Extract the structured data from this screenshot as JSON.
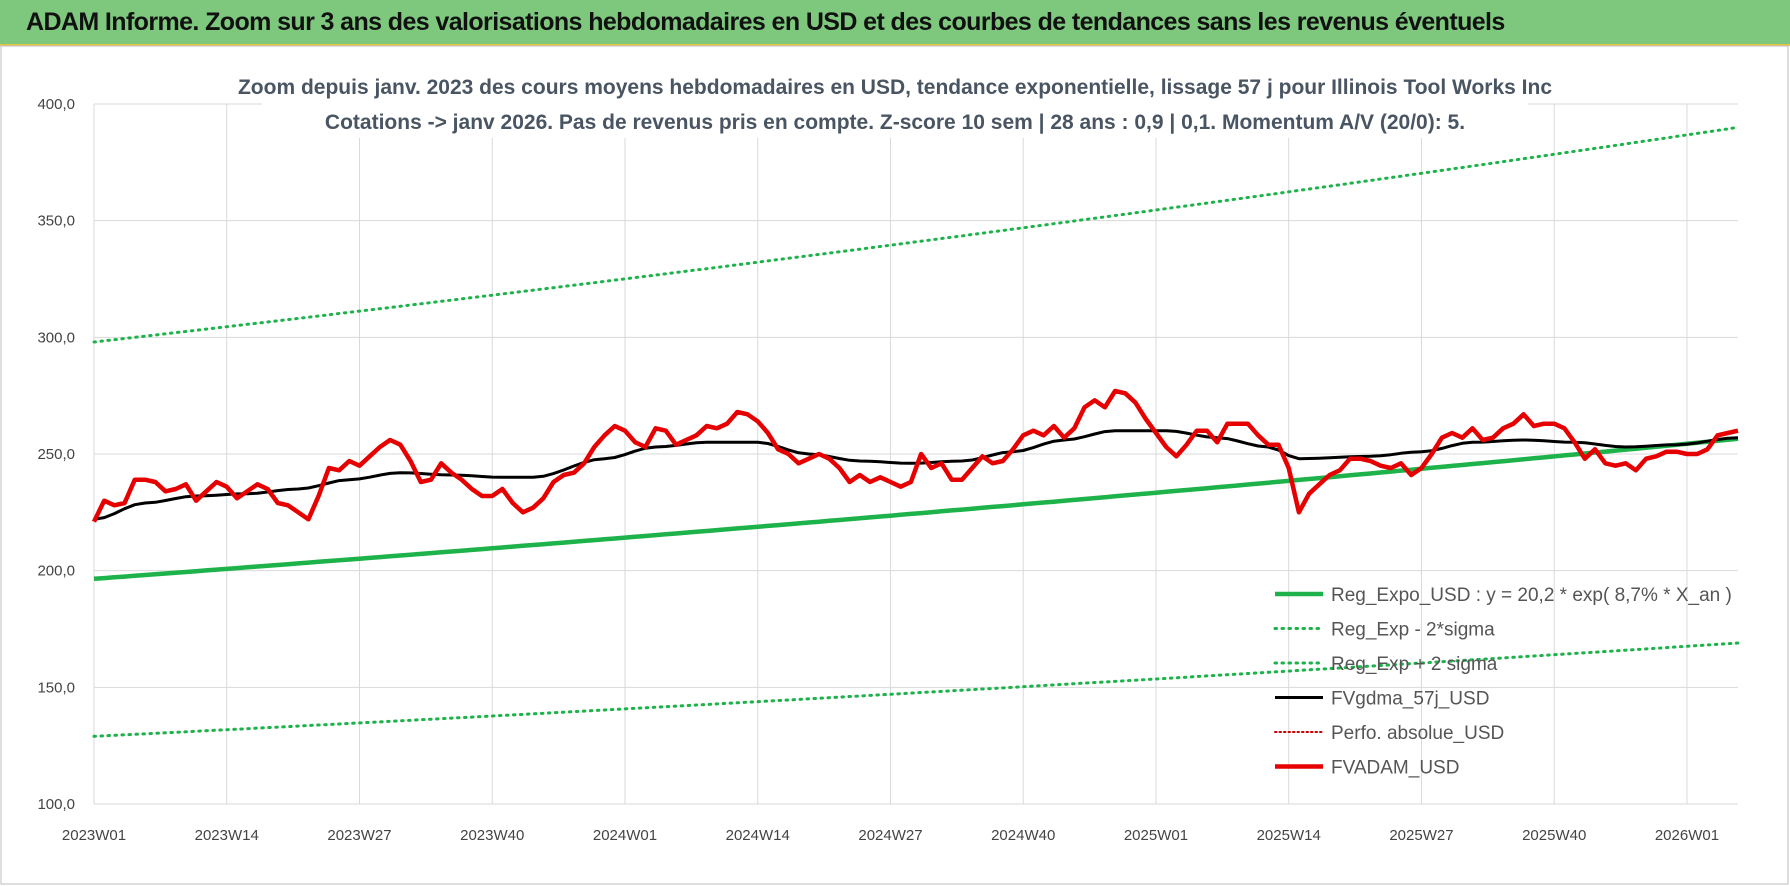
{
  "banner": {
    "title": "ADAM Informe. Zoom sur 3 ans des valorisations hebdomadaires en USD et des courbes de tendances sans les revenus éventuels"
  },
  "chart_data": {
    "type": "line",
    "title": "Zoom depuis janv. 2023 des cours moyens hebdomadaires en USD, tendance exponentielle, lissage 57 j pour Illinois Tool Works Inc",
    "subtitle": "Cotations -> janv 2026. Pas de revenus pris en compte. Z-score 10 sem | 28 ans : 0,9 | 0,1. Momentum A/V (20/0): 5.",
    "xlabel": "",
    "ylabel": "",
    "ylim": [
      100,
      400
    ],
    "y_ticks": [
      "100,0",
      "150,0",
      "200,0",
      "250,0",
      "300,0",
      "350,0",
      "400,0"
    ],
    "x_tick_labels": [
      "2023W01",
      "2023W14",
      "2023W27",
      "2023W40",
      "2024W01",
      "2024W14",
      "2024W27",
      "2024W40",
      "2025W01",
      "2025W14",
      "2025W27",
      "2025W40",
      "2026W01"
    ],
    "x_ticks_index": [
      0,
      13,
      26,
      39,
      52,
      65,
      78,
      91,
      104,
      117,
      130,
      143,
      156
    ],
    "n_weeks": 162,
    "grid": true,
    "legend_position": "bottom-right",
    "series": [
      {
        "name": "Reg_Expo_USD : y = 20,2 * exp( 8,7% *  X_an )",
        "color": "#1db34a",
        "style": "solid-thick",
        "start": 196.5,
        "end": 256.5
      },
      {
        "name": "Reg_Exp - 2*sigma",
        "color": "#1db34a",
        "style": "dotted",
        "start": 129,
        "end": 169
      },
      {
        "name": "Reg_Exp + 2 sigma",
        "color": "#1db34a",
        "style": "dotted",
        "start": 298,
        "end": 390
      },
      {
        "name": "FVgdma_57j_USD",
        "color": "#000000",
        "style": "solid",
        "knots": [
          [
            0,
            222
          ],
          [
            5,
            229
          ],
          [
            10,
            232
          ],
          [
            15,
            233
          ],
          [
            20,
            235
          ],
          [
            25,
            239
          ],
          [
            30,
            242
          ],
          [
            35,
            241
          ],
          [
            40,
            240
          ],
          [
            43,
            240
          ],
          [
            50,
            248
          ],
          [
            55,
            253
          ],
          [
            60,
            255
          ],
          [
            65,
            255
          ],
          [
            70,
            250
          ],
          [
            75,
            247
          ],
          [
            80,
            246
          ],
          [
            85,
            247
          ],
          [
            90,
            251
          ],
          [
            95,
            256
          ],
          [
            100,
            260
          ],
          [
            105,
            260
          ],
          [
            110,
            257
          ],
          [
            115,
            253
          ],
          [
            118,
            248
          ],
          [
            125,
            249
          ],
          [
            130,
            251
          ],
          [
            135,
            255
          ],
          [
            140,
            256
          ],
          [
            145,
            255
          ],
          [
            150,
            253
          ],
          [
            155,
            254
          ],
          [
            161,
            257
          ]
        ]
      },
      {
        "name": "Perfo. absolue_USD",
        "color": "#cc0000",
        "style": "dotted-thin"
      },
      {
        "name": "FVADAM_USD",
        "color": "#e60000",
        "style": "solid-thick",
        "values": [
          221,
          230,
          228,
          229,
          239,
          239,
          238,
          234,
          235,
          237,
          230,
          234,
          238,
          236,
          231,
          234,
          237,
          235,
          229,
          228,
          225,
          222,
          232,
          244,
          243,
          247,
          245,
          249,
          253,
          256,
          254,
          247,
          238,
          239,
          246,
          242,
          239,
          235,
          232,
          232,
          235,
          229,
          225,
          227,
          231,
          238,
          241,
          242,
          246,
          253,
          258,
          262,
          260,
          255,
          253,
          261,
          260,
          254,
          256,
          258,
          262,
          261,
          263,
          268,
          267,
          264,
          259,
          252,
          250,
          246,
          248,
          250,
          248,
          244,
          238,
          241,
          238,
          240,
          238,
          236,
          238,
          250,
          244,
          246,
          239,
          239,
          244,
          249,
          246,
          247,
          252,
          258,
          260,
          258,
          262,
          257,
          261,
          270,
          273,
          270,
          277,
          276,
          272,
          265,
          259,
          253,
          249,
          254,
          260,
          260,
          255,
          263,
          263,
          263,
          258,
          254,
          254,
          244,
          225,
          233,
          237,
          241,
          243,
          248,
          248,
          247,
          245,
          244,
          246,
          241,
          244,
          250,
          257,
          259,
          257,
          261,
          256,
          257,
          261,
          263,
          267,
          262,
          263,
          263,
          261,
          255,
          248,
          252,
          246,
          245,
          246,
          243,
          248,
          249,
          251,
          251,
          250,
          250,
          252,
          258,
          259,
          260
        ]
      }
    ]
  }
}
